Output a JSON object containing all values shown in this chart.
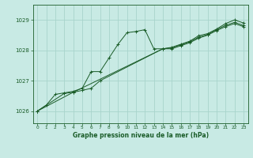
{
  "title": "Graphe pression niveau de la mer (hPa)",
  "bg_color": "#c8eae4",
  "grid_color": "#a8d4cc",
  "line_color": "#1a5c28",
  "xlim": [
    -0.5,
    23.5
  ],
  "ylim": [
    1025.6,
    1029.5
  ],
  "yticks": [
    1026,
    1027,
    1028,
    1029
  ],
  "xticks": [
    0,
    1,
    2,
    3,
    4,
    5,
    6,
    7,
    8,
    9,
    10,
    11,
    12,
    13,
    14,
    15,
    16,
    17,
    18,
    19,
    20,
    21,
    22,
    23
  ],
  "series": [
    {
      "x": [
        0,
        1,
        2,
        3,
        4,
        5,
        6,
        7,
        8,
        9,
        10,
        11,
        12,
        13,
        14,
        15,
        16,
        17,
        18,
        19,
        20,
        21,
        22,
        23
      ],
      "y": [
        1026.0,
        1026.2,
        1026.55,
        1026.6,
        1026.65,
        1026.75,
        1027.3,
        1027.3,
        1027.75,
        1028.2,
        1028.58,
        1028.62,
        1028.68,
        1028.05,
        1028.05,
        1028.1,
        1028.2,
        1028.3,
        1028.48,
        1028.55,
        1028.7,
        1028.88,
        1029.0,
        1028.9
      ]
    },
    {
      "x": [
        0,
        3,
        4,
        5,
        6,
        7,
        14,
        15,
        16,
        17,
        18,
        19,
        20,
        21,
        22,
        23
      ],
      "y": [
        1026.0,
        1026.58,
        1026.62,
        1026.68,
        1026.75,
        1027.0,
        1028.05,
        1028.08,
        1028.18,
        1028.28,
        1028.43,
        1028.52,
        1028.68,
        1028.82,
        1028.92,
        1028.82
      ]
    },
    {
      "x": [
        0,
        4,
        14,
        15,
        16,
        17,
        18,
        19,
        20,
        21,
        22,
        23
      ],
      "y": [
        1026.0,
        1026.62,
        1028.05,
        1028.05,
        1028.15,
        1028.25,
        1028.4,
        1028.5,
        1028.65,
        1028.78,
        1028.88,
        1028.78
      ]
    }
  ]
}
